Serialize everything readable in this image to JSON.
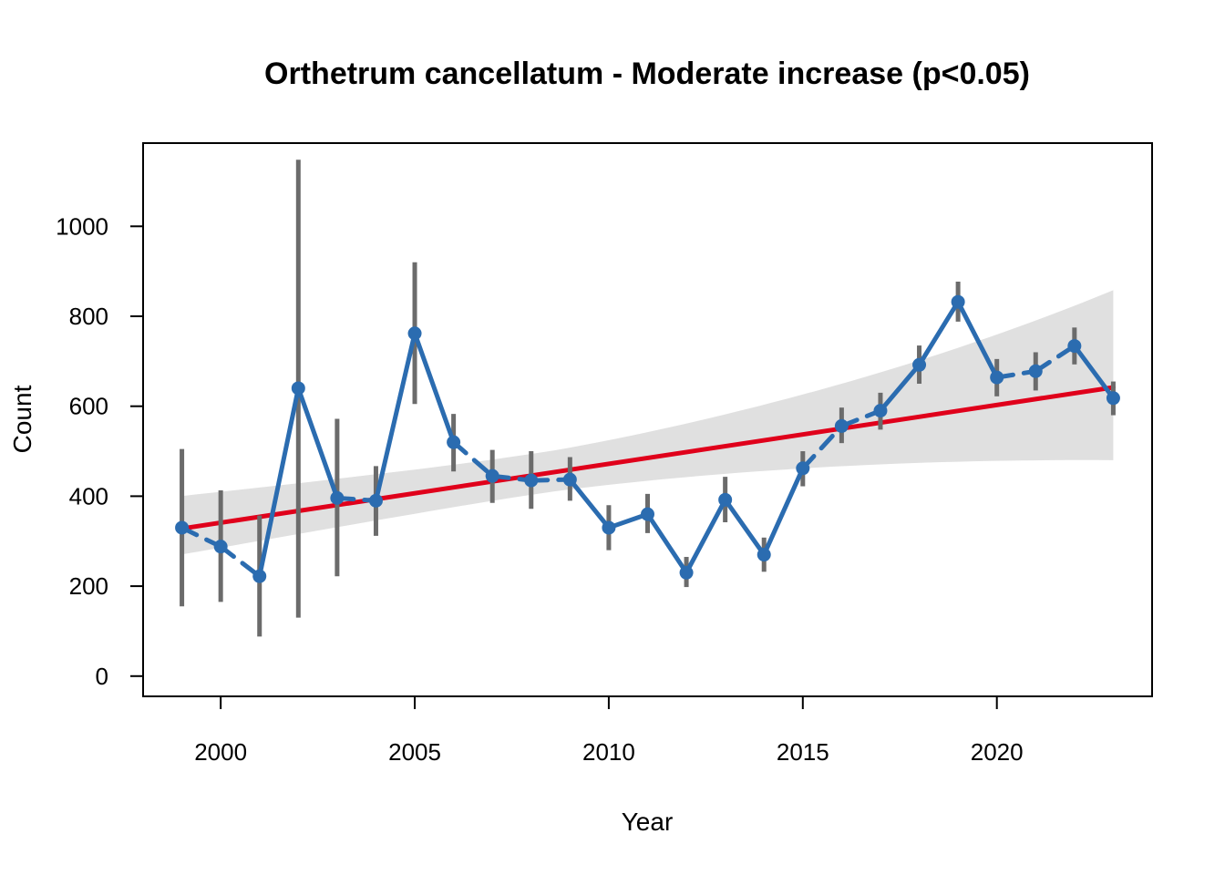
{
  "chart_data": {
    "type": "line",
    "title": "Orthetrum cancellatum - Moderate increase (p<0.05)",
    "xlabel": "Year",
    "ylabel": "Count",
    "xlim": [
      1998.0,
      2024.0
    ],
    "ylim": [
      -45,
      1185
    ],
    "x_ticks": [
      2000,
      2005,
      2010,
      2015,
      2020
    ],
    "y_ticks": [
      0,
      200,
      400,
      600,
      800,
      1000
    ],
    "grid": false,
    "colors": {
      "series": "#2b6cb0",
      "error_bars": "#6b6b6b",
      "trend": "#e0001b",
      "band": "#e0e0e0",
      "frame": "#000000"
    },
    "series": [
      {
        "x": [
          1999,
          2000,
          2001,
          2002,
          2003,
          2004,
          2005,
          2006,
          2007,
          2008,
          2009,
          2010,
          2011,
          2012,
          2013,
          2014,
          2015,
          2016,
          2017,
          2018,
          2019,
          2020,
          2021,
          2022,
          2023
        ],
        "values": [
          330,
          288,
          222,
          640,
          396,
          390,
          762,
          520,
          445,
          435,
          437,
          330,
          360,
          230,
          392,
          270,
          462,
          556,
          590,
          692,
          832,
          664,
          678,
          734,
          618
        ],
        "lower": [
          155,
          165,
          88,
          130,
          222,
          312,
          605,
          455,
          385,
          372,
          390,
          280,
          318,
          198,
          342,
          232,
          422,
          518,
          548,
          650,
          788,
          622,
          635,
          693,
          580
        ],
        "upper": [
          505,
          413,
          357,
          1148,
          572,
          467,
          920,
          583,
          503,
          500,
          487,
          380,
          405,
          265,
          443,
          308,
          500,
          597,
          630,
          735,
          877,
          705,
          720,
          775,
          655
        ],
        "segment_styles": [
          "dashed",
          "dashed",
          "solid",
          "solid",
          "dashed",
          "solid",
          "solid",
          "dashed",
          "dashed",
          "dashed",
          "solid",
          "solid",
          "solid",
          "solid",
          "solid",
          "solid",
          "dashed",
          "dashed",
          "solid",
          "solid",
          "solid",
          "dashed",
          "dashed",
          "solid"
        ]
      }
    ],
    "trend": {
      "x": [
        1999,
        2023
      ],
      "start": 328,
      "end": 642,
      "band_lower": [
        248,
        480
      ],
      "band_upper": [
        438,
        858
      ]
    }
  }
}
